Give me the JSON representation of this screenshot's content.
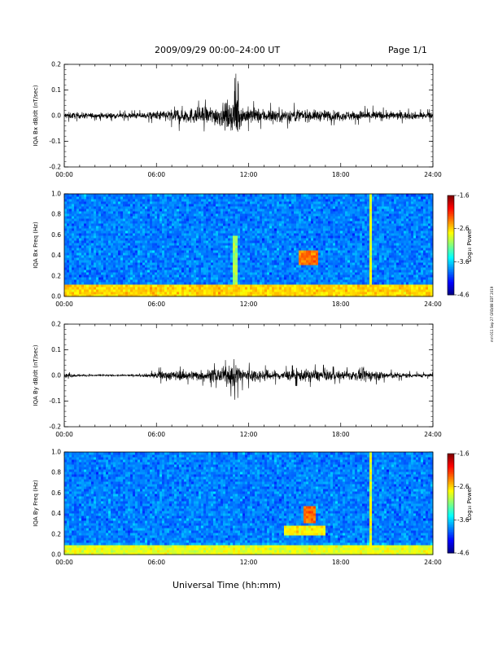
{
  "header": {
    "title": "2009/09/29   00:00–24:00 UT",
    "page": "Page 1/1"
  },
  "footer": {
    "xlabel": "Universal Time (hh:mm)"
  },
  "side_note": "mrl-011 Sep 27 GRD/88 EDT 2019",
  "chart_data": [
    {
      "type": "line",
      "ylabel": "IQA Bx dB/dt (nT/sec)",
      "xlabel": "",
      "xlim": [
        0,
        24
      ],
      "ylim": [
        -0.2,
        0.2
      ],
      "x_ticks": [
        "00:00",
        "06:00",
        "12:00",
        "18:00",
        "24:00"
      ],
      "y_ticks": [
        "-0.2",
        "-0.1",
        "0.0",
        "0.1",
        "0.2"
      ],
      "envelope": {
        "x": [
          0,
          1,
          2,
          3,
          4,
          5,
          5.8,
          6,
          7,
          7.5,
          8,
          9,
          10,
          10.5,
          11,
          11.2,
          11.5,
          12,
          13,
          14,
          15,
          16,
          17,
          18,
          19,
          20,
          21,
          22,
          23,
          24
        ],
        "amplitude": [
          0.025,
          0.022,
          0.02,
          0.022,
          0.02,
          0.022,
          0.03,
          0.035,
          0.045,
          0.06,
          0.055,
          0.06,
          0.075,
          0.09,
          0.12,
          0.17,
          0.07,
          0.06,
          0.05,
          0.05,
          0.05,
          0.04,
          0.04,
          0.035,
          0.035,
          0.04,
          0.03,
          0.03,
          0.025,
          0.025
        ]
      }
    },
    {
      "type": "heatmap",
      "ylabel": "IQA Bx Freq (Hz)",
      "xlim": [
        0,
        24
      ],
      "ylim": [
        0.0,
        1.0
      ],
      "x_ticks": [
        "00:00",
        "06:00",
        "12:00",
        "18:00",
        "24:00"
      ],
      "y_ticks": [
        "0.0",
        "0.2",
        "0.4",
        "0.6",
        "0.8",
        "1.0"
      ],
      "colorbar": {
        "label": "Log₁₀ Power",
        "ticks": [
          "-1.6",
          "-2.6",
          "-3.6",
          "-4.6"
        ],
        "range": [
          -4.6,
          -1.6
        ]
      },
      "features": [
        {
          "name": "low-frequency band",
          "x": [
            0,
            24
          ],
          "y": [
            0.0,
            0.12
          ],
          "value": -2.6
        },
        {
          "name": "enhancement",
          "x": [
            15.3,
            16.5
          ],
          "y": [
            0.3,
            0.45
          ],
          "value": -2.3
        },
        {
          "name": "vertical streak",
          "x": [
            19.9,
            20.1
          ],
          "y": [
            0.0,
            1.0
          ],
          "value": -2.8
        },
        {
          "name": "vertical streak",
          "x": [
            11.0,
            11.3
          ],
          "y": [
            0.0,
            0.6
          ],
          "value": -3.0
        }
      ]
    },
    {
      "type": "line",
      "ylabel": "IQA By dB/dt (nT/sec)",
      "xlabel": "",
      "xlim": [
        0,
        24
      ],
      "ylim": [
        -0.2,
        0.2
      ],
      "x_ticks": [
        "00:00",
        "06:00",
        "12:00",
        "18:00",
        "24:00"
      ],
      "y_ticks": [
        "-0.2",
        "-0.1",
        "0.0",
        "0.1",
        "0.2"
      ],
      "envelope": {
        "x": [
          0,
          1,
          2,
          3,
          4,
          5,
          5.8,
          6,
          7,
          8,
          9,
          10,
          10.5,
          11,
          11.2,
          11.5,
          12,
          13,
          14,
          15,
          16,
          17,
          18,
          19,
          19.5,
          20,
          21,
          22,
          23,
          24
        ],
        "amplitude": [
          0.015,
          0.008,
          0.006,
          0.006,
          0.006,
          0.008,
          0.02,
          0.03,
          0.035,
          0.035,
          0.04,
          0.05,
          0.06,
          0.09,
          0.1,
          0.06,
          0.05,
          0.04,
          0.035,
          0.04,
          0.045,
          0.04,
          0.03,
          0.035,
          0.05,
          0.04,
          0.025,
          0.02,
          0.015,
          0.012
        ]
      }
    },
    {
      "type": "heatmap",
      "ylabel": "IQA By Freq (Hz)",
      "xlim": [
        0,
        24
      ],
      "ylim": [
        0.0,
        1.0
      ],
      "x_ticks": [
        "00:00",
        "06:00",
        "12:00",
        "18:00",
        "24:00"
      ],
      "y_ticks": [
        "0.0",
        "0.2",
        "0.4",
        "0.6",
        "0.8",
        "1.0"
      ],
      "colorbar": {
        "label": "Log₁₀ Power",
        "ticks": [
          "-1.6",
          "-2.6",
          "-3.6",
          "-4.6"
        ],
        "range": [
          -4.6,
          -1.6
        ]
      },
      "features": [
        {
          "name": "low-frequency band",
          "x": [
            0,
            24
          ],
          "y": [
            0.0,
            0.1
          ],
          "value": -2.8
        },
        {
          "name": "enhancement",
          "x": [
            15.5,
            16.4
          ],
          "y": [
            0.3,
            0.48
          ],
          "value": -2.3
        },
        {
          "name": "enhancement tail",
          "x": [
            14.3,
            17.0
          ],
          "y": [
            0.2,
            0.28
          ],
          "value": -2.7
        },
        {
          "name": "vertical streak",
          "x": [
            19.9,
            20.1
          ],
          "y": [
            0.0,
            1.0
          ],
          "value": -2.8
        }
      ]
    }
  ]
}
